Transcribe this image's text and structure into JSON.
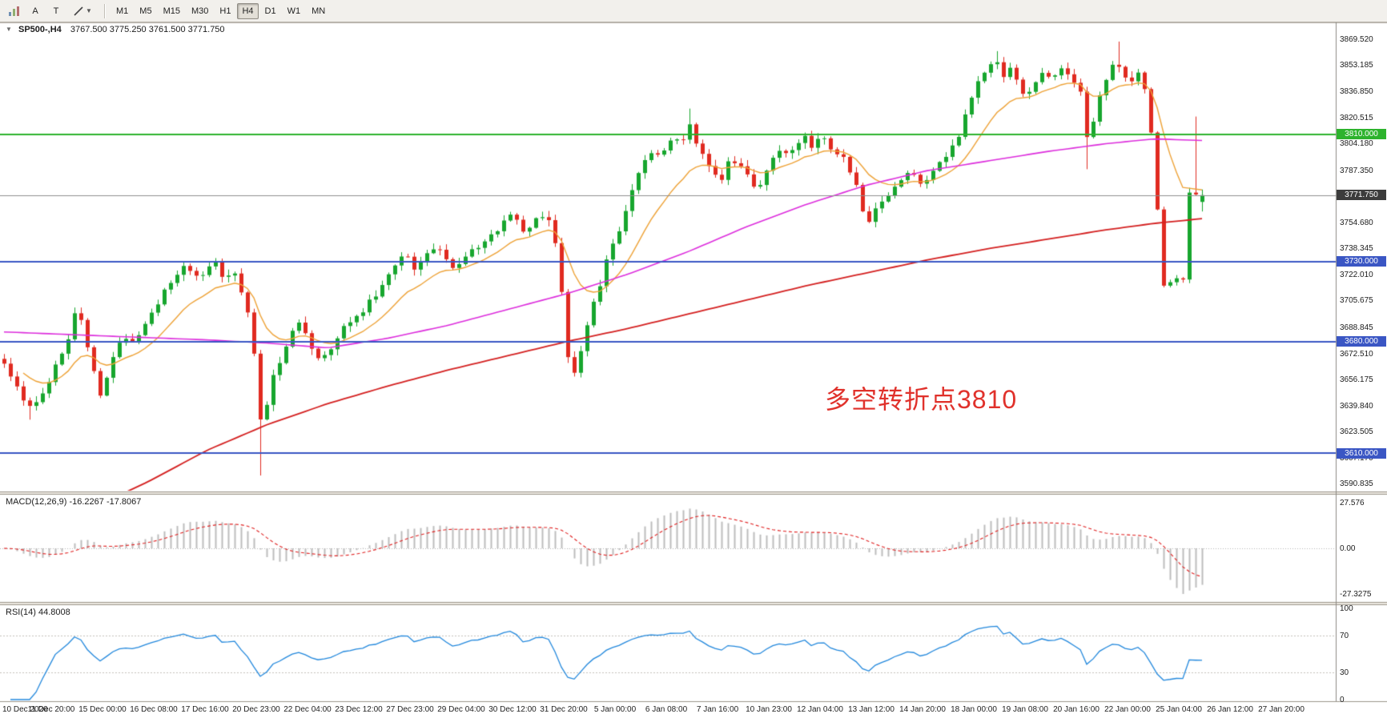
{
  "app": {
    "title_symbol": "SP500-,H4",
    "title_quotes": "3767.500 3775.250 3761.500 3771.750"
  },
  "toolbar": {
    "tools": [
      "A",
      "T"
    ],
    "timeframes": [
      "M1",
      "M5",
      "M15",
      "M30",
      "H1",
      "H4",
      "D1",
      "W1",
      "MN"
    ],
    "active_timeframe": "H4"
  },
  "annotation": {
    "text": "多空转折点3810",
    "color": "#e0312b"
  },
  "price_labels": {
    "current": {
      "value": 3771.75,
      "label": "3771.750",
      "line_color": "#8f8f8f",
      "bg": "#3c3c3c",
      "fg": "#ffffff"
    },
    "hlines": [
      {
        "value": 3810.0,
        "label": "3810.000",
        "color": "#2db32d"
      },
      {
        "value": 3730.0,
        "label": "3730.000",
        "color": "#3a56c4"
      },
      {
        "value": 3680.0,
        "label": "3680.000",
        "color": "#3a56c4"
      },
      {
        "value": 3610.0,
        "label": "3610.000",
        "color": "#3a56c4"
      }
    ]
  },
  "chart_data": {
    "type": "candlestick",
    "symbol": "SP500-",
    "timeframe": "H4",
    "current": {
      "open": 3767.5,
      "high": 3775.25,
      "low": 3761.5,
      "close": 3771.75
    },
    "bars": 188,
    "up_color": "#17a62e",
    "down_color": "#e02a20",
    "price_axis": {
      "min": 3588,
      "max": 3878,
      "ticks": [
        "3869.520",
        "3853.185",
        "3836.850",
        "3820.515",
        "3804.180",
        "3787.350",
        "3754.680",
        "3738.345",
        "3722.010",
        "3705.675",
        "3688.845",
        "3672.510",
        "3656.175",
        "3639.840",
        "3623.505",
        "3607.170",
        "3590.835"
      ]
    },
    "time_axis": [
      "10 Dec 2020",
      "11 Dec 20:00",
      "15 Dec 00:00",
      "16 Dec 08:00",
      "17 Dec 16:00",
      "20 Dec 23:00",
      "22 Dec 04:00",
      "23 Dec 12:00",
      "27 Dec 23:00",
      "29 Dec 04:00",
      "30 Dec 12:00",
      "31 Dec 20:00",
      "5 Jan 00:00",
      "6 Jan 08:00",
      "7 Jan 16:00",
      "10 Jan 23:00",
      "12 Jan 04:00",
      "13 Jan 12:00",
      "14 Jan 20:00",
      "18 Jan 00:00",
      "19 Jan 08:00",
      "20 Jan 16:00",
      "22 Jan 00:00",
      "25 Jan 04:00",
      "26 Jan 12:00",
      "27 Jan 20:00"
    ],
    "price_path": [
      [
        0,
        3668
      ],
      [
        0.01,
        3650
      ],
      [
        0.023,
        3638
      ],
      [
        0.037,
        3656
      ],
      [
        0.05,
        3673
      ],
      [
        0.061,
        3701
      ],
      [
        0.07,
        3674
      ],
      [
        0.08,
        3646
      ],
      [
        0.09,
        3669
      ],
      [
        0.1,
        3684
      ],
      [
        0.11,
        3679
      ],
      [
        0.123,
        3696
      ],
      [
        0.137,
        3717
      ],
      [
        0.152,
        3729
      ],
      [
        0.163,
        3716
      ],
      [
        0.175,
        3731
      ],
      [
        0.184,
        3720
      ],
      [
        0.193,
        3723
      ],
      [
        0.203,
        3701
      ],
      [
        0.21,
        3663
      ],
      [
        0.215,
        3622
      ],
      [
        0.223,
        3654
      ],
      [
        0.233,
        3673
      ],
      [
        0.245,
        3691
      ],
      [
        0.255,
        3679
      ],
      [
        0.265,
        3666
      ],
      [
        0.275,
        3681
      ],
      [
        0.285,
        3689
      ],
      [
        0.295,
        3697
      ],
      [
        0.305,
        3704
      ],
      [
        0.315,
        3713
      ],
      [
        0.325,
        3727
      ],
      [
        0.333,
        3736
      ],
      [
        0.343,
        3724
      ],
      [
        0.353,
        3734
      ],
      [
        0.361,
        3742
      ],
      [
        0.373,
        3725
      ],
      [
        0.384,
        3731
      ],
      [
        0.395,
        3739
      ],
      [
        0.405,
        3746
      ],
      [
        0.415,
        3753
      ],
      [
        0.425,
        3761
      ],
      [
        0.435,
        3749
      ],
      [
        0.444,
        3756
      ],
      [
        0.454,
        3759
      ],
      [
        0.461,
        3741
      ],
      [
        0.467,
        3698
      ],
      [
        0.473,
        3654
      ],
      [
        0.481,
        3674
      ],
      [
        0.491,
        3701
      ],
      [
        0.501,
        3726
      ],
      [
        0.511,
        3746
      ],
      [
        0.521,
        3769
      ],
      [
        0.531,
        3789
      ],
      [
        0.541,
        3801
      ],
      [
        0.548,
        3794
      ],
      [
        0.555,
        3809
      ],
      [
        0.564,
        3804
      ],
      [
        0.572,
        3817
      ],
      [
        0.581,
        3799
      ],
      [
        0.589,
        3789
      ],
      [
        0.597,
        3777
      ],
      [
        0.605,
        3794
      ],
      [
        0.614,
        3789
      ],
      [
        0.622,
        3781
      ],
      [
        0.631,
        3776
      ],
      [
        0.639,
        3791
      ],
      [
        0.648,
        3798
      ],
      [
        0.657,
        3801
      ],
      [
        0.667,
        3809
      ],
      [
        0.675,
        3802
      ],
      [
        0.684,
        3808
      ],
      [
        0.693,
        3799
      ],
      [
        0.702,
        3794
      ],
      [
        0.711,
        3777
      ],
      [
        0.719,
        3754
      ],
      [
        0.727,
        3763
      ],
      [
        0.737,
        3771
      ],
      [
        0.747,
        3779
      ],
      [
        0.757,
        3786
      ],
      [
        0.767,
        3778
      ],
      [
        0.777,
        3789
      ],
      [
        0.787,
        3796
      ],
      [
        0.797,
        3811
      ],
      [
        0.807,
        3834
      ],
      [
        0.817,
        3849
      ],
      [
        0.827,
        3857
      ],
      [
        0.835,
        3846
      ],
      [
        0.842,
        3853
      ],
      [
        0.849,
        3833
      ],
      [
        0.857,
        3839
      ],
      [
        0.866,
        3851
      ],
      [
        0.874,
        3846
      ],
      [
        0.882,
        3853
      ],
      [
        0.891,
        3841
      ],
      [
        0.897,
        3843
      ],
      [
        0.905,
        3801
      ],
      [
        0.913,
        3831
      ],
      [
        0.921,
        3846
      ],
      [
        0.929,
        3856
      ],
      [
        0.937,
        3841
      ],
      [
        0.946,
        3847
      ],
      [
        0.953,
        3839
      ],
      [
        0.959,
        3801
      ],
      [
        0.966,
        3723
      ],
      [
        0.971,
        3706
      ],
      [
        0.977,
        3731
      ],
      [
        0.982,
        3701
      ],
      [
        0.987,
        3746
      ],
      [
        0.992,
        3806
      ],
      [
        0.996,
        3757
      ],
      [
        1,
        3771.75
      ]
    ],
    "wick_events": [
      {
        "t": 0.023,
        "low": 3631
      },
      {
        "t": 0.215,
        "low": 3596
      },
      {
        "t": 0.572,
        "high": 3826
      },
      {
        "t": 0.827,
        "high": 3862
      },
      {
        "t": 0.905,
        "low": 3788
      },
      {
        "t": 0.929,
        "high": 3868
      },
      {
        "t": 0.992,
        "high": 3821
      }
    ],
    "ma_fast": {
      "color": "#eea236",
      "period": 13
    },
    "ma_mid": {
      "color": "#dd2edd",
      "path": [
        [
          0,
          3686
        ],
        [
          0.1,
          3683
        ],
        [
          0.17,
          3681
        ],
        [
          0.22,
          3679
        ],
        [
          0.27,
          3676
        ],
        [
          0.32,
          3682
        ],
        [
          0.37,
          3690
        ],
        [
          0.42,
          3700
        ],
        [
          0.47,
          3710
        ],
        [
          0.52,
          3722
        ],
        [
          0.57,
          3736
        ],
        [
          0.62,
          3752
        ],
        [
          0.67,
          3766
        ],
        [
          0.72,
          3778
        ],
        [
          0.77,
          3787
        ],
        [
          0.82,
          3793
        ],
        [
          0.87,
          3799
        ],
        [
          0.92,
          3804
        ],
        [
          0.96,
          3807
        ],
        [
          1,
          3806
        ]
      ]
    },
    "ma_slow": {
      "color": "#d42020",
      "path": [
        [
          0,
          3548
        ],
        [
          0.08,
          3578
        ],
        [
          0.12,
          3592
        ],
        [
          0.17,
          3612
        ],
        [
          0.22,
          3628
        ],
        [
          0.27,
          3641
        ],
        [
          0.32,
          3652
        ],
        [
          0.37,
          3662
        ],
        [
          0.42,
          3671
        ],
        [
          0.47,
          3680
        ],
        [
          0.52,
          3688
        ],
        [
          0.57,
          3697
        ],
        [
          0.62,
          3706
        ],
        [
          0.67,
          3715
        ],
        [
          0.72,
          3723
        ],
        [
          0.77,
          3731
        ],
        [
          0.82,
          3738
        ],
        [
          0.87,
          3744
        ],
        [
          0.92,
          3750
        ],
        [
          0.96,
          3754
        ],
        [
          1,
          3757
        ]
      ]
    },
    "indicators": {
      "macd": {
        "label": "MACD(12,26,9) -16.2267 -17.8067",
        "ticks": [
          "27.576",
          "0.00",
          "-27.3275"
        ],
        "histogram_color": "#bdbdbd",
        "signal_color": "#e02020"
      },
      "rsi": {
        "label": "RSI(14) 44.8008",
        "ticks": [
          "100",
          "70",
          "30",
          "0"
        ],
        "line_color": "#2288dd",
        "level_lines": [
          70,
          30
        ]
      }
    }
  }
}
